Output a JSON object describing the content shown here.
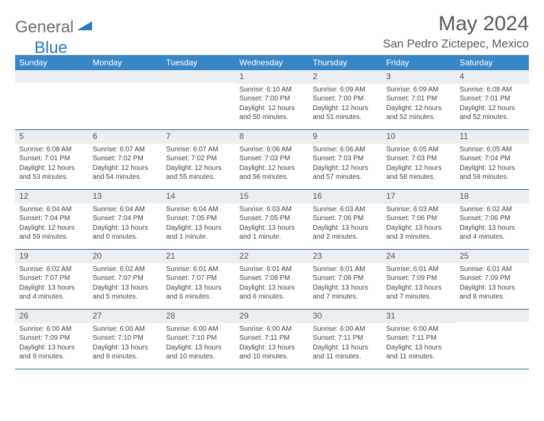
{
  "brand": {
    "part1": "General",
    "part2": "Blue"
  },
  "title": "May 2024",
  "location": "San Pedro Zictepec, Mexico",
  "colors": {
    "header_bg": "#3a87c8",
    "header_text": "#ffffff",
    "daybar_bg": "#eceff2",
    "row_border": "#2f5e8a",
    "title_text": "#5a5a5a",
    "body_text": "#444444",
    "logo_gray": "#6f6f6f",
    "logo_blue": "#2a77bd"
  },
  "fonts": {
    "title_size_pt": 22,
    "location_size_pt": 13,
    "weekday_size_pt": 9,
    "daynum_size_pt": 9,
    "body_size_pt": 7.5
  },
  "calendar": {
    "type": "table",
    "columns": [
      "Sunday",
      "Monday",
      "Tuesday",
      "Wednesday",
      "Thursday",
      "Friday",
      "Saturday"
    ],
    "weeks": [
      [
        null,
        null,
        null,
        {
          "n": "1",
          "sr": "6:10 AM",
          "ss": "7:00 PM",
          "dl": "12 hours and 50 minutes."
        },
        {
          "n": "2",
          "sr": "6:09 AM",
          "ss": "7:00 PM",
          "dl": "12 hours and 51 minutes."
        },
        {
          "n": "3",
          "sr": "6:09 AM",
          "ss": "7:01 PM",
          "dl": "12 hours and 52 minutes."
        },
        {
          "n": "4",
          "sr": "6:08 AM",
          "ss": "7:01 PM",
          "dl": "12 hours and 52 minutes."
        }
      ],
      [
        {
          "n": "5",
          "sr": "6:08 AM",
          "ss": "7:01 PM",
          "dl": "12 hours and 53 minutes."
        },
        {
          "n": "6",
          "sr": "6:07 AM",
          "ss": "7:02 PM",
          "dl": "12 hours and 54 minutes."
        },
        {
          "n": "7",
          "sr": "6:07 AM",
          "ss": "7:02 PM",
          "dl": "12 hours and 55 minutes."
        },
        {
          "n": "8",
          "sr": "6:06 AM",
          "ss": "7:03 PM",
          "dl": "12 hours and 56 minutes."
        },
        {
          "n": "9",
          "sr": "6:06 AM",
          "ss": "7:03 PM",
          "dl": "12 hours and 57 minutes."
        },
        {
          "n": "10",
          "sr": "6:05 AM",
          "ss": "7:03 PM",
          "dl": "12 hours and 58 minutes."
        },
        {
          "n": "11",
          "sr": "6:05 AM",
          "ss": "7:04 PM",
          "dl": "12 hours and 58 minutes."
        }
      ],
      [
        {
          "n": "12",
          "sr": "6:04 AM",
          "ss": "7:04 PM",
          "dl": "12 hours and 59 minutes."
        },
        {
          "n": "13",
          "sr": "6:04 AM",
          "ss": "7:04 PM",
          "dl": "13 hours and 0 minutes."
        },
        {
          "n": "14",
          "sr": "6:04 AM",
          "ss": "7:05 PM",
          "dl": "13 hours and 1 minute."
        },
        {
          "n": "15",
          "sr": "6:03 AM",
          "ss": "7:05 PM",
          "dl": "13 hours and 1 minute."
        },
        {
          "n": "16",
          "sr": "6:03 AM",
          "ss": "7:06 PM",
          "dl": "13 hours and 2 minutes."
        },
        {
          "n": "17",
          "sr": "6:03 AM",
          "ss": "7:06 PM",
          "dl": "13 hours and 3 minutes."
        },
        {
          "n": "18",
          "sr": "6:02 AM",
          "ss": "7:06 PM",
          "dl": "13 hours and 4 minutes."
        }
      ],
      [
        {
          "n": "19",
          "sr": "6:02 AM",
          "ss": "7:07 PM",
          "dl": "13 hours and 4 minutes."
        },
        {
          "n": "20",
          "sr": "6:02 AM",
          "ss": "7:07 PM",
          "dl": "13 hours and 5 minutes."
        },
        {
          "n": "21",
          "sr": "6:01 AM",
          "ss": "7:07 PM",
          "dl": "13 hours and 6 minutes."
        },
        {
          "n": "22",
          "sr": "6:01 AM",
          "ss": "7:08 PM",
          "dl": "13 hours and 6 minutes."
        },
        {
          "n": "23",
          "sr": "6:01 AM",
          "ss": "7:08 PM",
          "dl": "13 hours and 7 minutes."
        },
        {
          "n": "24",
          "sr": "6:01 AM",
          "ss": "7:09 PM",
          "dl": "13 hours and 7 minutes."
        },
        {
          "n": "25",
          "sr": "6:01 AM",
          "ss": "7:09 PM",
          "dl": "13 hours and 8 minutes."
        }
      ],
      [
        {
          "n": "26",
          "sr": "6:00 AM",
          "ss": "7:09 PM",
          "dl": "13 hours and 9 minutes."
        },
        {
          "n": "27",
          "sr": "6:00 AM",
          "ss": "7:10 PM",
          "dl": "13 hours and 9 minutes."
        },
        {
          "n": "28",
          "sr": "6:00 AM",
          "ss": "7:10 PM",
          "dl": "13 hours and 10 minutes."
        },
        {
          "n": "29",
          "sr": "6:00 AM",
          "ss": "7:11 PM",
          "dl": "13 hours and 10 minutes."
        },
        {
          "n": "30",
          "sr": "6:00 AM",
          "ss": "7:11 PM",
          "dl": "13 hours and 11 minutes."
        },
        {
          "n": "31",
          "sr": "6:00 AM",
          "ss": "7:11 PM",
          "dl": "13 hours and 11 minutes."
        },
        null
      ]
    ],
    "labels": {
      "sunrise": "Sunrise:",
      "sunset": "Sunset:",
      "daylight": "Daylight:"
    }
  }
}
